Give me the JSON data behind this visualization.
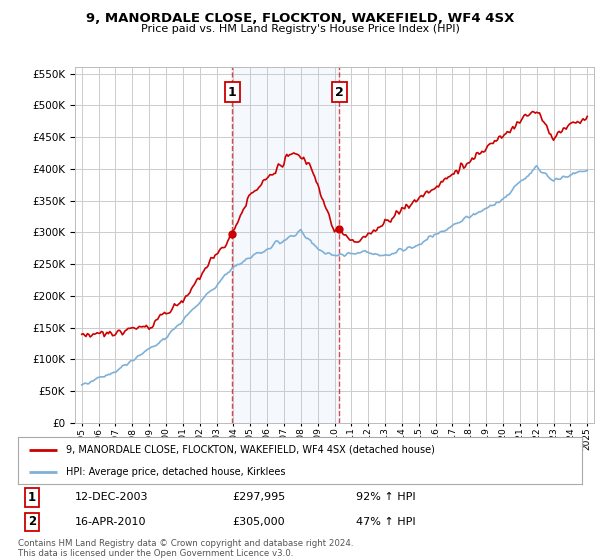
{
  "title": "9, MANORDALE CLOSE, FLOCKTON, WAKEFIELD, WF4 4SX",
  "subtitle": "Price paid vs. HM Land Registry's House Price Index (HPI)",
  "background_color": "#ffffff",
  "plot_bg_color": "#ffffff",
  "grid_color": "#cccccc",
  "hpi_color": "#7fb0d8",
  "price_color": "#cc0000",
  "sale1_date": 2003.92,
  "sale1_price": 297995,
  "sale2_date": 2010.29,
  "sale2_price": 305000,
  "ylim_min": 0,
  "ylim_max": 560000,
  "xlim_min": 1994.6,
  "xlim_max": 2025.4,
  "legend_label_price": "9, MANORDALE CLOSE, FLOCKTON, WAKEFIELD, WF4 4SX (detached house)",
  "legend_label_hpi": "HPI: Average price, detached house, Kirklees",
  "annotation1_label": "1",
  "annotation1_date": "12-DEC-2003",
  "annotation1_price": "£297,995",
  "annotation1_hpi": "92% ↑ HPI",
  "annotation2_label": "2",
  "annotation2_date": "16-APR-2010",
  "annotation2_price": "£305,000",
  "annotation2_hpi": "47% ↑ HPI",
  "footer": "Contains HM Land Registry data © Crown copyright and database right 2024.\nThis data is licensed under the Open Government Licence v3.0."
}
